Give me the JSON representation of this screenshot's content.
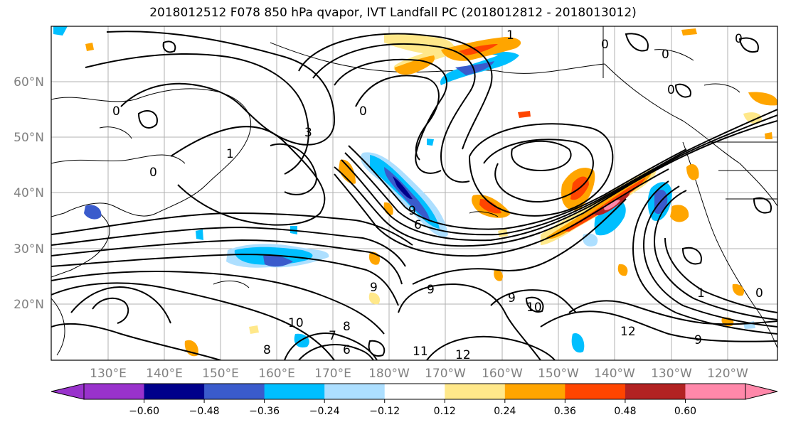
{
  "title": "2018012512 F078 850 hPa qvapor, IVT Landfall PC (2018012812 - 2018013012)",
  "map": {
    "lat_labels": [
      "60°N",
      "50°N",
      "40°N",
      "30°N",
      "20°N"
    ],
    "lon_labels": [
      "130°E",
      "140°E",
      "150°E",
      "160°E",
      "170°E",
      "180°W",
      "170°W",
      "160°W",
      "150°W",
      "140°W",
      "130°W",
      "120°W"
    ],
    "contour_labels": [
      "0",
      "0",
      "0",
      "0",
      "0",
      "0",
      "1",
      "3",
      "0",
      "1",
      "9",
      "9",
      "10",
      "10",
      "11",
      "12",
      "12",
      "9",
      "7",
      "8",
      "6",
      "9",
      "6",
      "9",
      "8",
      "1",
      "0"
    ],
    "label_color": "#808080"
  },
  "colorbar": {
    "ticks": [
      "−0.60",
      "−0.48",
      "−0.36",
      "−0.24",
      "−0.12",
      "0.12",
      "0.24",
      "0.36",
      "0.48",
      "0.60"
    ],
    "colors": [
      "#9932CC",
      "#00008B",
      "#3A5BCC",
      "#00BFFF",
      "#ADDFFF",
      "#FFFFFF",
      "#FFE88A",
      "#FFA500",
      "#FF4500",
      "#B22222",
      "#FF88AA"
    ]
  }
}
